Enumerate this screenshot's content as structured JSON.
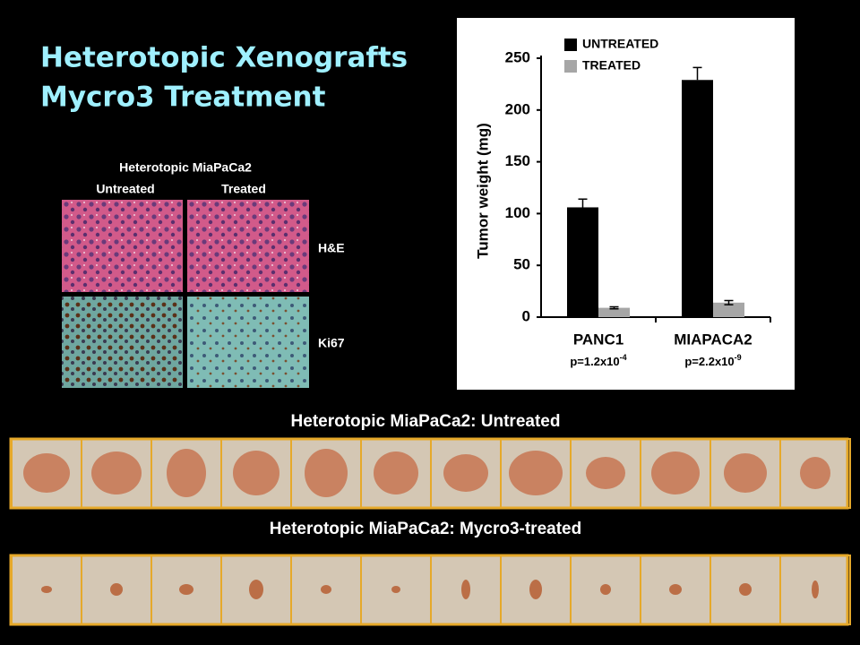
{
  "header": {
    "title_lines": [
      "Heterotopic Xenografts",
      "Mycro3 Treatment"
    ]
  },
  "histology": {
    "title": "Heterotopic MiaPaCa2",
    "columns": [
      "Untreated",
      "Treated"
    ],
    "rows": [
      "H&E",
      "Ki67"
    ]
  },
  "chart_data": {
    "type": "bar",
    "y_label": "Tumor weight (mg)",
    "categories": [
      "PANC1",
      "MIAPACA2"
    ],
    "p_values": [
      {
        "base": "p=1.2x10",
        "exponent": "-4"
      },
      {
        "base": "p=2.2x10",
        "exponent": "-9"
      }
    ],
    "series": [
      {
        "name": "UNTREATED",
        "color": "#000000",
        "values": [
          106,
          229
        ],
        "errors": [
          8,
          12
        ]
      },
      {
        "name": "TREATED",
        "color": "#a6a6a6",
        "values": [
          9,
          14
        ],
        "errors": [
          1,
          2
        ]
      }
    ],
    "ylim": [
      0,
      250
    ],
    "yticks": [
      0,
      50,
      100,
      150,
      200,
      250
    ],
    "legend": "top-left"
  },
  "tumor_rows": [
    {
      "caption": "Heterotopic MiaPaCa2: Untreated"
    },
    {
      "caption": "Heterotopic MiaPaCa2: Mycro3-treated"
    }
  ]
}
